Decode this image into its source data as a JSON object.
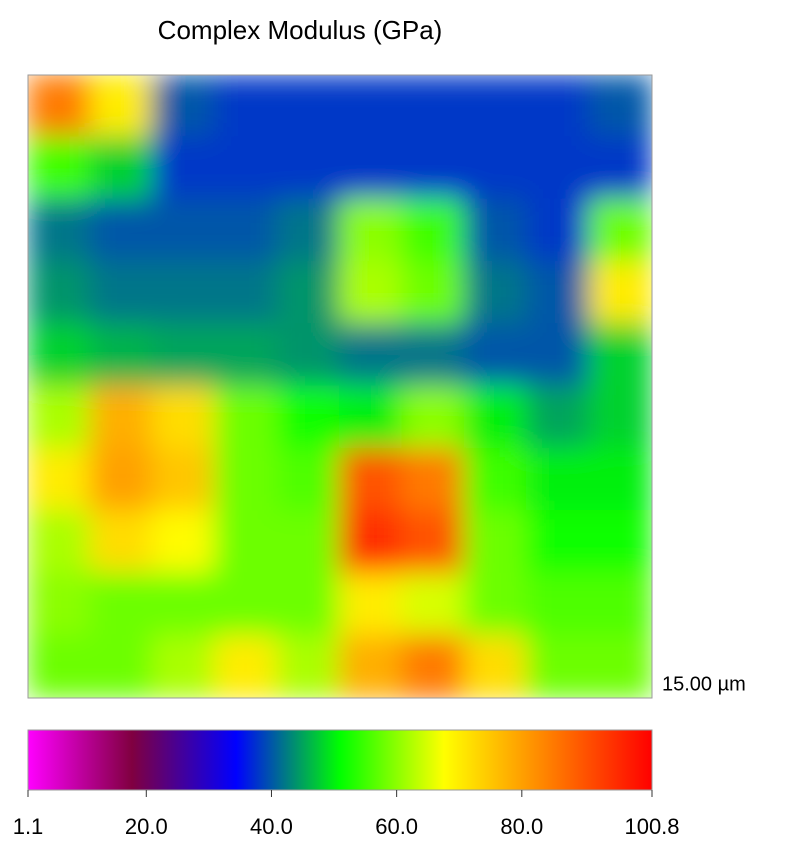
{
  "chart_data": {
    "type": "heatmap",
    "title": "Complex Modulus (GPa)",
    "scale_label": "15.00 µm",
    "z": [
      [
        85,
        70,
        40,
        38,
        38,
        38,
        38,
        38,
        38,
        40
      ],
      [
        55,
        48,
        38,
        38,
        38,
        38,
        38,
        38,
        38,
        38
      ],
      [
        42,
        40,
        40,
        40,
        42,
        60,
        55,
        40,
        38,
        58
      ],
      [
        44,
        42,
        42,
        42,
        44,
        62,
        58,
        42,
        40,
        70
      ],
      [
        48,
        46,
        45,
        45,
        44,
        42,
        42,
        40,
        40,
        48
      ],
      [
        62,
        78,
        72,
        58,
        52,
        50,
        60,
        50,
        45,
        48
      ],
      [
        70,
        80,
        75,
        58,
        56,
        90,
        85,
        55,
        50,
        50
      ],
      [
        62,
        72,
        68,
        58,
        58,
        95,
        90,
        58,
        52,
        52
      ],
      [
        60,
        58,
        58,
        58,
        58,
        70,
        65,
        58,
        56,
        56
      ],
      [
        58,
        58,
        62,
        70,
        62,
        78,
        85,
        72,
        58,
        58
      ]
    ],
    "colorscale": [
      "#ff00ff",
      "#800040",
      "#0000ff",
      "#00ff00",
      "#ffff00",
      "#ff8000",
      "#ff0000"
    ],
    "zlim": [
      1.1,
      100.8
    ],
    "zticks": [
      1.1,
      {
        "value": 20,
        "label": "20.0"
      },
      {
        "value": 40,
        "label": "40.0"
      },
      {
        "value": 60,
        "label": "60.0"
      },
      {
        "value": 80,
        "label": "80.0"
      },
      100.8
    ]
  }
}
